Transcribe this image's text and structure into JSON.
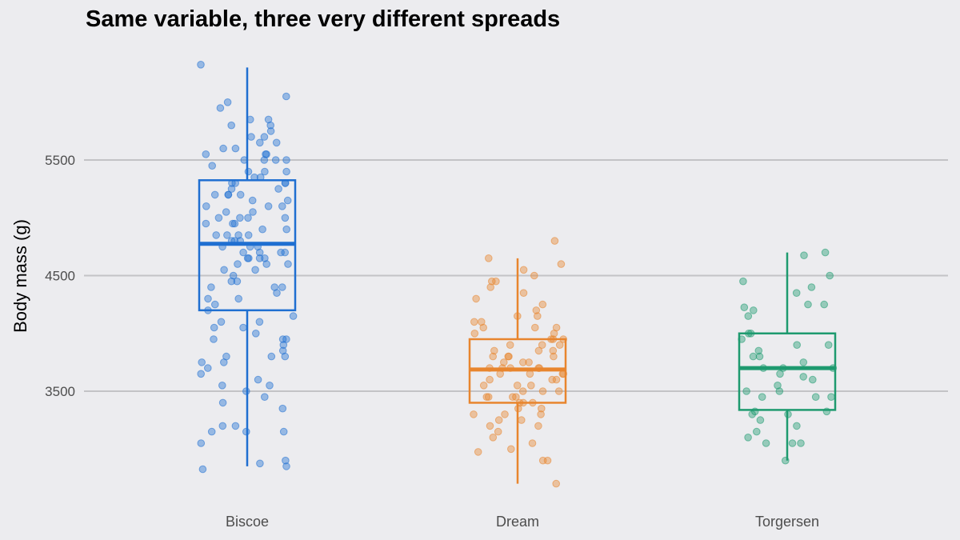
{
  "chart_data": {
    "type": "box",
    "title": "Same variable, three very different spreads",
    "xlabel": "",
    "ylabel": "Body mass (g)",
    "y_ticks": [
      3500,
      4500,
      5500
    ],
    "ylim": [
      2700,
      6550
    ],
    "grid": "horizontal",
    "legend": "none",
    "categories": [
      "Biscoe",
      "Dream",
      "Torgersen"
    ],
    "colors": {
      "Biscoe": "#1f6fd1",
      "Dream": "#e8852e",
      "Torgersen": "#1e9a6f"
    },
    "boxes": [
      {
        "category": "Biscoe",
        "q1": 4200,
        "median": 4775,
        "q3": 5325,
        "whisker_low": 2850,
        "whisker_high": 6300
      },
      {
        "category": "Dream",
        "q1": 3400,
        "median": 3688,
        "q3": 3950,
        "whisker_low": 2700,
        "whisker_high": 4650
      },
      {
        "category": "Torgersen",
        "q1": 3338,
        "median": 3700,
        "q3": 4000,
        "whisker_low": 2900,
        "whisker_high": 4700
      }
    ],
    "points": {
      "Biscoe": [
        6325,
        6050,
        6000,
        5950,
        5850,
        5850,
        5800,
        5800,
        5750,
        5700,
        5700,
        5650,
        5650,
        5600,
        5600,
        5550,
        5550,
        5550,
        5500,
        5500,
        5500,
        5500,
        5450,
        5400,
        5400,
        5400,
        5350,
        5350,
        5300,
        5300,
        5300,
        5300,
        5250,
        5250,
        5200,
        5200,
        5200,
        5200,
        5150,
        5150,
        5100,
        5100,
        5100,
        5050,
        5050,
        5000,
        5000,
        5000,
        5000,
        4950,
        4950,
        4950,
        4900,
        4900,
        4850,
        4850,
        4850,
        4850,
        4800,
        4800,
        4800,
        4750,
        4750,
        4750,
        4700,
        4700,
        4700,
        4700,
        4650,
        4650,
        4650,
        4650,
        4600,
        4600,
        4600,
        4550,
        4550,
        4500,
        4450,
        4450,
        4400,
        4400,
        4400,
        4350,
        4300,
        4300,
        4250,
        4200,
        4150,
        4100,
        4100,
        4050,
        4050,
        4000,
        3950,
        3950,
        3950,
        3900,
        3850,
        3800,
        3800,
        3800,
        3750,
        3750,
        3700,
        3650,
        3600,
        3550,
        3550,
        3500,
        3450,
        3400,
        3350,
        3200,
        3200,
        3150,
        3150,
        3150,
        3050,
        2900,
        2875,
        2850,
        2825
      ],
      "Dream": [
        4800,
        4650,
        4600,
        4550,
        4500,
        4450,
        4450,
        4400,
        4350,
        4300,
        4250,
        4200,
        4150,
        4150,
        4100,
        4100,
        4050,
        4050,
        4050,
        4000,
        4000,
        3950,
        3950,
        3950,
        3900,
        3900,
        3900,
        3850,
        3850,
        3850,
        3800,
        3800,
        3800,
        3800,
        3750,
        3750,
        3750,
        3700,
        3700,
        3700,
        3700,
        3700,
        3650,
        3650,
        3650,
        3650,
        3600,
        3600,
        3600,
        3550,
        3550,
        3550,
        3500,
        3500,
        3500,
        3450,
        3450,
        3450,
        3450,
        3400,
        3400,
        3400,
        3350,
        3350,
        3300,
        3300,
        3300,
        3250,
        3250,
        3200,
        3200,
        3150,
        3100,
        3050,
        3000,
        2975,
        2900,
        2900,
        2700
      ],
      "Torgersen": [
        4700,
        4675,
        4500,
        4450,
        4400,
        4350,
        4250,
        4250,
        4225,
        4200,
        4150,
        4000,
        4000,
        3950,
        3900,
        3900,
        3850,
        3800,
        3800,
        3750,
        3700,
        3700,
        3700,
        3650,
        3625,
        3600,
        3550,
        3500,
        3500,
        3450,
        3450,
        3450,
        3325,
        3325,
        3300,
        3300,
        3250,
        3200,
        3150,
        3100,
        3050,
        3050,
        3050,
        2900
      ]
    }
  }
}
